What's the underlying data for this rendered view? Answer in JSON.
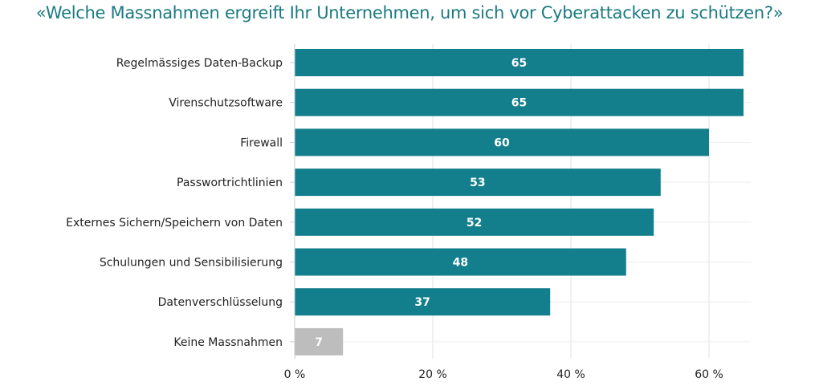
{
  "chart_data": {
    "type": "bar",
    "orientation": "horizontal",
    "title": "«Welche Massnahmen ergreift Ihr Unternehmen, um sich vor Cyberattacken zu schützen?»",
    "categories": [
      "Regelmässiges Daten-Backup",
      "Virenschutzsoftware",
      "Firewall",
      "Passwortrichtlinien",
      "Externes Sichern/Speichern von Daten",
      "Schulungen und Sensibilisierung",
      "Datenverschlüsselung",
      "Keine Massnahmen"
    ],
    "values": [
      65,
      65,
      60,
      53,
      52,
      48,
      37,
      7
    ],
    "colors": [
      "#137f8c",
      "#137f8c",
      "#137f8c",
      "#137f8c",
      "#137f8c",
      "#137f8c",
      "#137f8c",
      "#bdbdbd"
    ],
    "xlim": [
      0,
      65
    ],
    "xticks": [
      0,
      20,
      40,
      60
    ],
    "xtick_labels": [
      "0 %",
      "20 %",
      "40 %",
      "60 %"
    ],
    "xlabel": "",
    "ylabel": "",
    "grid": true
  }
}
